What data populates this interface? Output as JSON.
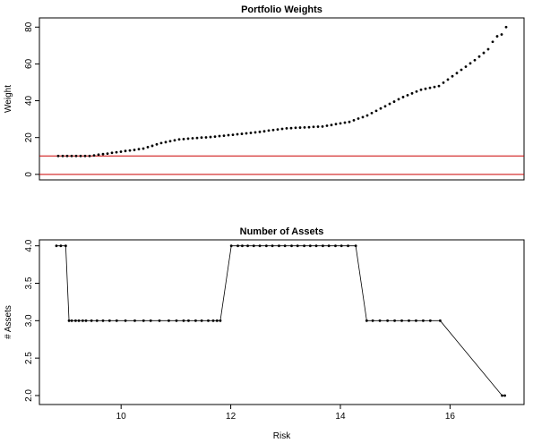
{
  "chart_data": [
    {
      "type": "scatter",
      "title": "Portfolio Weights",
      "y_label": "Weight",
      "values": [
        10,
        10,
        10,
        10,
        10,
        10,
        10,
        10,
        10.3,
        10.7,
        11,
        11.3,
        11.7,
        12,
        12.3,
        12.7,
        13,
        13.3,
        13.7,
        14,
        14.8,
        15.5,
        16.3,
        17,
        17.5,
        18,
        18.5,
        19,
        19.2,
        19.4,
        19.6,
        19.8,
        20,
        20.1,
        20.3,
        20.5,
        20.8,
        21,
        21.3,
        21.5,
        21.8,
        22,
        22.3,
        22.5,
        22.8,
        23.1,
        23.4,
        23.8,
        24.1,
        24.4,
        24.7,
        25,
        25.1,
        25.3,
        25.4,
        25.5,
        25.6,
        25.8,
        25.9,
        26,
        26.4,
        26.8,
        27.3,
        27.7,
        28.1,
        28.5,
        29.4,
        30.3,
        31.1,
        32,
        33.3,
        34.5,
        35.8,
        37,
        38.3,
        39.5,
        40.8,
        42,
        43,
        44,
        45,
        46,
        46.5,
        47,
        47.5,
        48,
        49.8,
        51.5,
        53.3,
        55,
        56.8,
        58.5,
        60.3,
        62,
        64,
        66,
        68,
        72,
        75,
        76,
        80
      ],
      "color": "#000000",
      "ylim": [
        -3,
        85
      ],
      "yticks": [
        0,
        20,
        40,
        60,
        80
      ],
      "reference_lines": [
        {
          "value": 10,
          "color": "#cc0000"
        },
        {
          "value": 0,
          "color": "#cc0000"
        }
      ]
    },
    {
      "type": "line",
      "title": "Number of Assets",
      "x_label": "Risk",
      "y_label": "# Assets",
      "x": [
        8.82,
        8.9,
        8.99,
        9.05,
        9.1,
        9.17,
        9.23,
        9.3,
        9.36,
        9.46,
        9.56,
        9.67,
        9.79,
        9.92,
        10.08,
        10.25,
        10.41,
        10.54,
        10.7,
        10.87,
        11.01,
        11.14,
        11.23,
        11.36,
        11.47,
        11.59,
        11.68,
        11.75,
        11.81,
        12.01,
        12.13,
        12.21,
        12.31,
        12.42,
        12.53,
        12.65,
        12.76,
        12.88,
        12.99,
        13.11,
        13.22,
        13.34,
        13.45,
        13.56,
        13.68,
        13.79,
        13.91,
        14.02,
        14.14,
        14.28,
        14.48,
        14.59,
        14.72,
        14.86,
        14.99,
        15.12,
        15.25,
        15.38,
        15.51,
        15.64,
        15.82,
        16.95,
        17.0
      ],
      "values": [
        4,
        4,
        4,
        3,
        3,
        3,
        3,
        3,
        3,
        3,
        3,
        3,
        3,
        3,
        3,
        3,
        3,
        3,
        3,
        3,
        3,
        3,
        3,
        3,
        3,
        3,
        3,
        3,
        3,
        4,
        4,
        4,
        4,
        4,
        4,
        4,
        4,
        4,
        4,
        4,
        4,
        4,
        4,
        4,
        4,
        4,
        4,
        4,
        4,
        4,
        3,
        3,
        3,
        3,
        3,
        3,
        3,
        3,
        3,
        3,
        3,
        2,
        2
      ],
      "color": "#000000",
      "xlim": [
        8.51,
        17.35
      ],
      "xticks": [
        10,
        12,
        14,
        16
      ],
      "ylim": [
        1.88,
        4.08
      ],
      "yticks": [
        {
          "value": 2,
          "label": "2.0"
        },
        {
          "value": 2.5,
          "label": "2.5"
        },
        {
          "value": 3,
          "label": "3.0"
        },
        {
          "value": 3.5,
          "label": "3.5"
        },
        {
          "value": 4,
          "label": "4.0"
        }
      ]
    }
  ]
}
